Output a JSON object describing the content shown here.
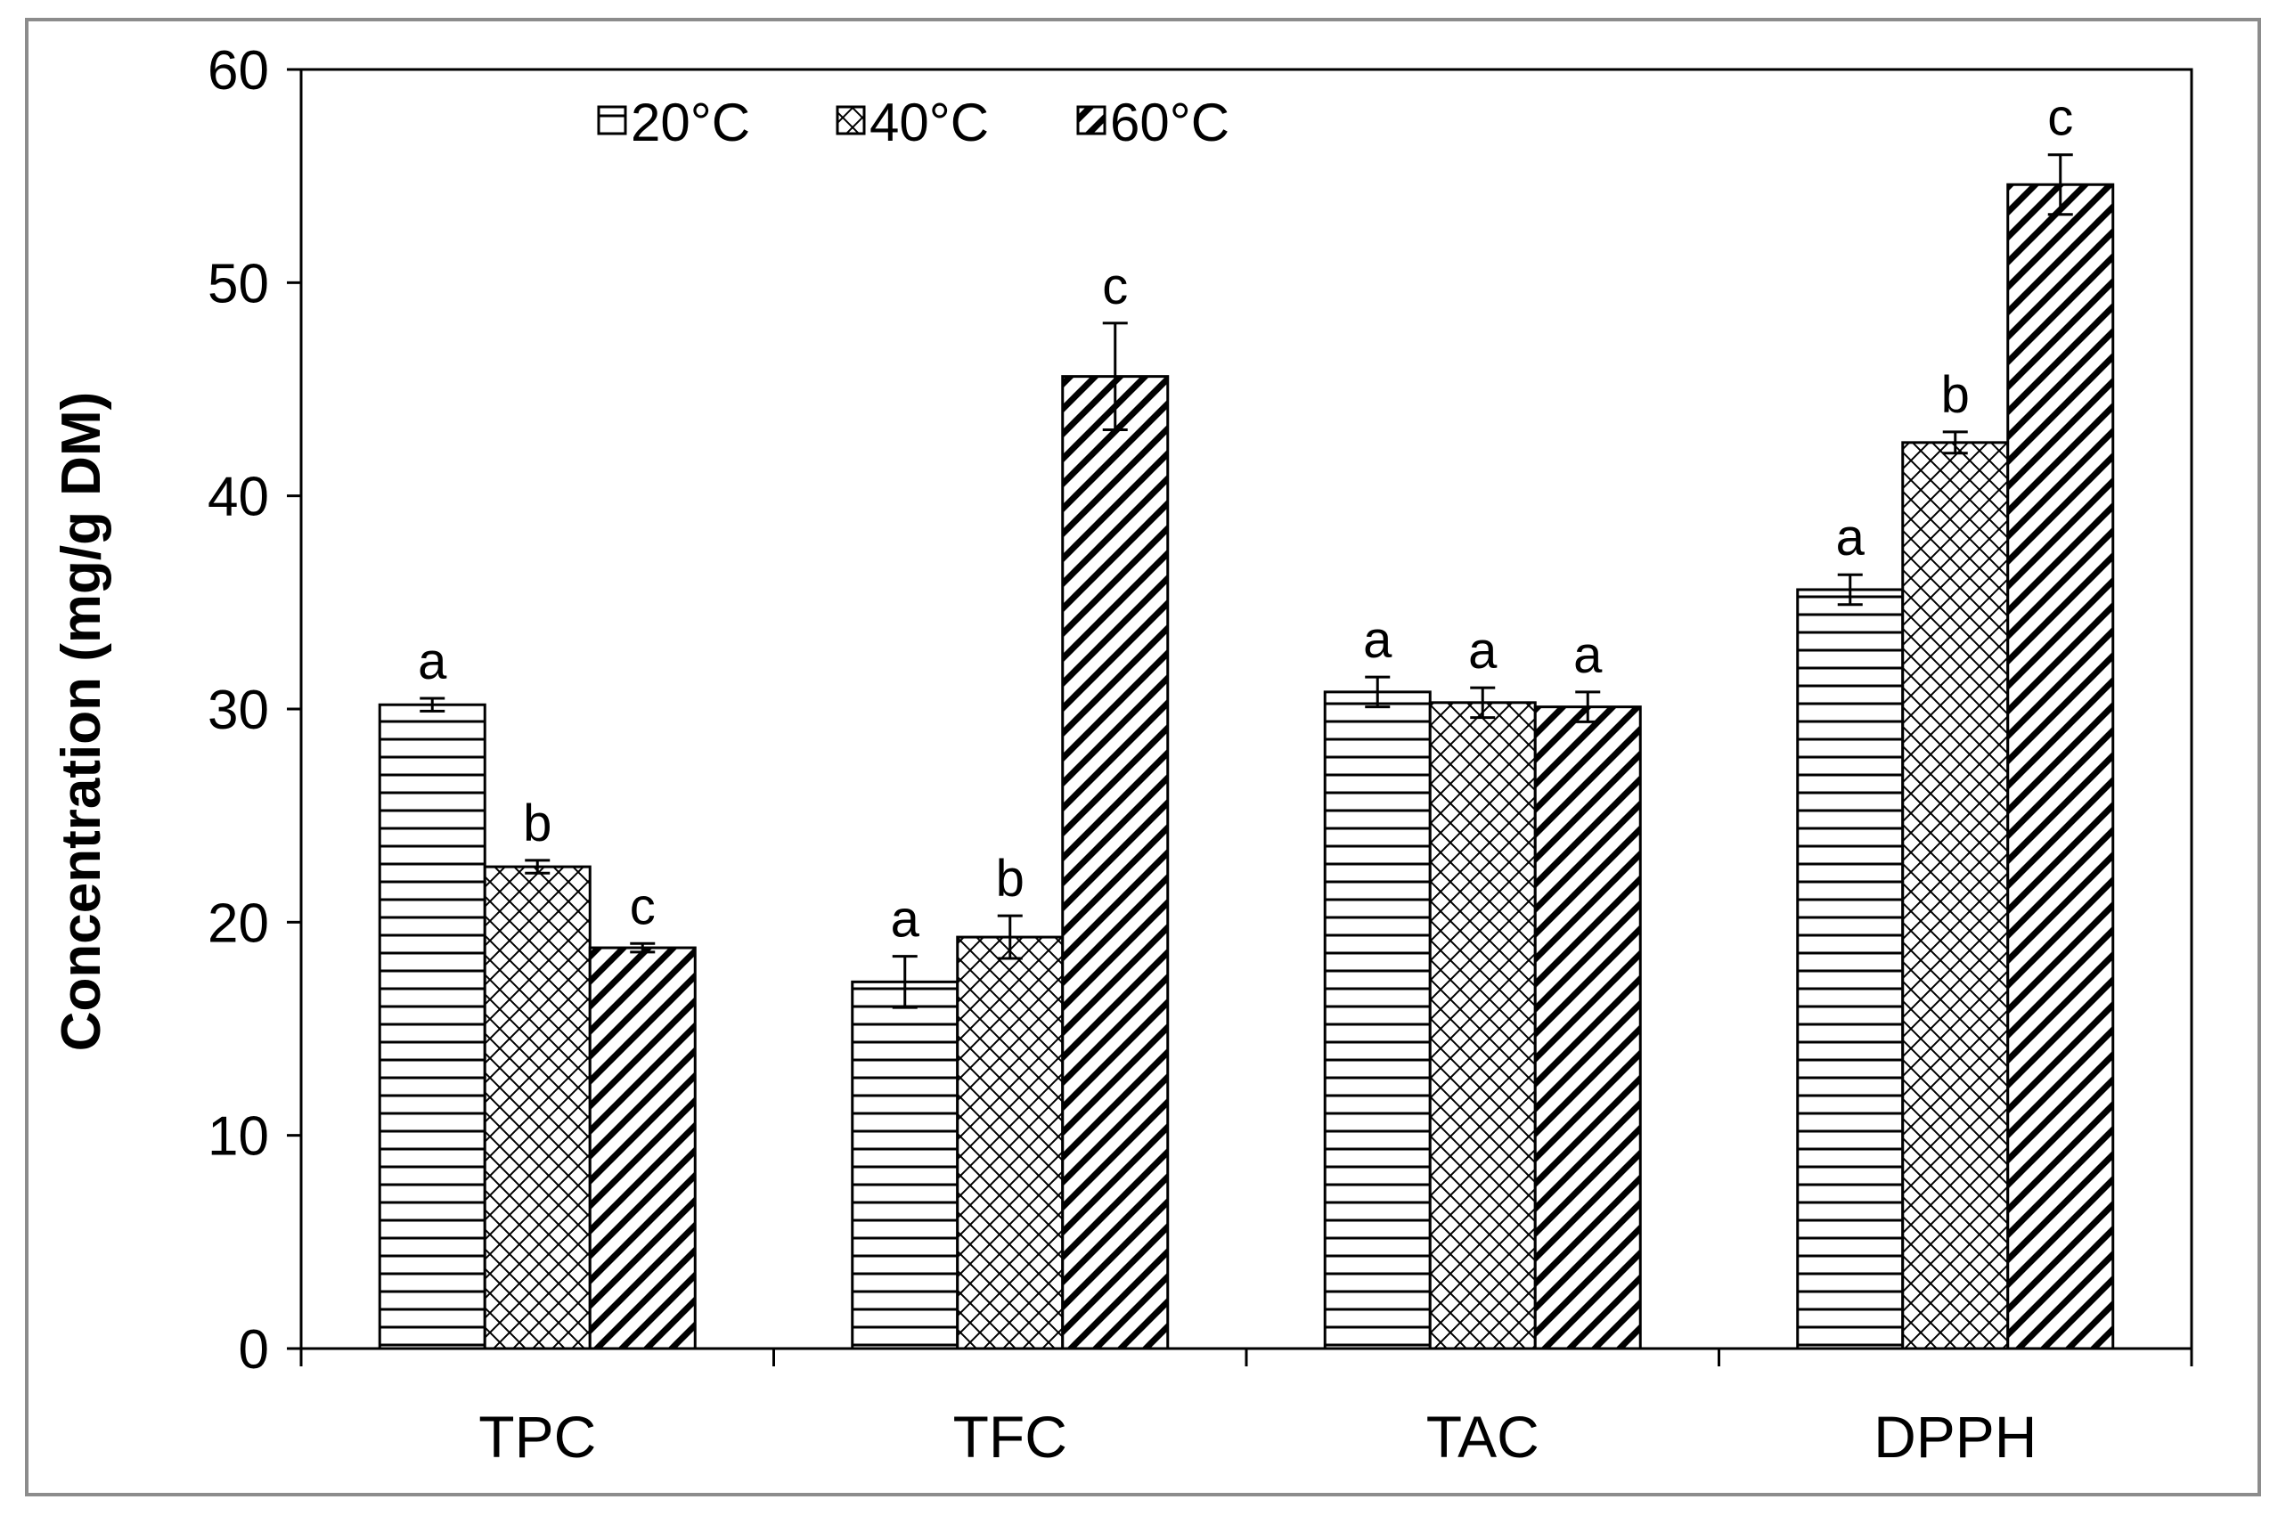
{
  "chart_data": {
    "type": "bar",
    "title": "",
    "xlabel": "",
    "ylabel": "Concentration (mg/g DM)",
    "ylim": [
      0,
      60
    ],
    "yticks": [
      0,
      10,
      20,
      30,
      40,
      50,
      60
    ],
    "legend_position": "top-left",
    "categories": [
      "TPC",
      "TFC",
      "TAC",
      "DPPH"
    ],
    "series": [
      {
        "name": "20°C",
        "pattern": "horizontal",
        "values": [
          30.2,
          17.2,
          30.8,
          35.6
        ],
        "errors": [
          0.3,
          1.2,
          0.7,
          0.7
        ],
        "letters": [
          "a",
          "a",
          "a",
          "a"
        ]
      },
      {
        "name": "40°C",
        "pattern": "crosshatch",
        "values": [
          22.6,
          19.3,
          30.3,
          42.5
        ],
        "errors": [
          0.3,
          1.0,
          0.7,
          0.5
        ],
        "letters": [
          "b",
          "b",
          "a",
          "b"
        ]
      },
      {
        "name": "60°C",
        "pattern": "diagonal",
        "values": [
          18.8,
          45.6,
          30.1,
          54.6
        ],
        "errors": [
          0.2,
          2.5,
          0.7,
          1.4
        ],
        "letters": [
          "c",
          "c",
          "a",
          "c"
        ]
      }
    ]
  },
  "colors": {
    "bar_fill": "#ffffff",
    "ink": "#000000",
    "frame": "#8c8c8c"
  }
}
